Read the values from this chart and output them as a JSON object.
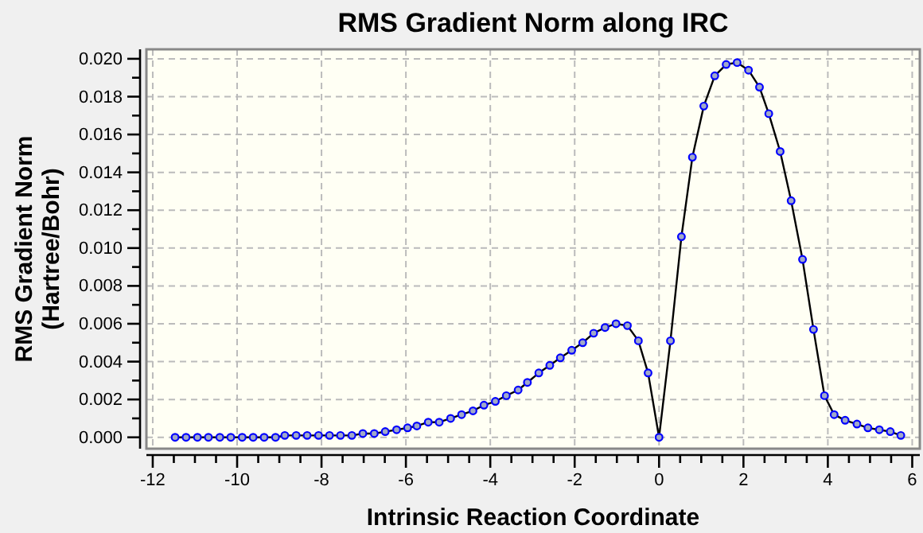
{
  "chart_data": {
    "type": "line",
    "title": "RMS Gradient Norm along IRC",
    "xlabel": "Intrinsic Reaction Coordinate",
    "ylabel": "RMS Gradient Norm\n(Hartree/Bohr)",
    "x": [
      -11.47,
      -11.21,
      -10.94,
      -10.68,
      -10.41,
      -10.15,
      -9.88,
      -9.62,
      -9.36,
      -9.09,
      -8.87,
      -8.6,
      -8.34,
      -8.07,
      -7.81,
      -7.55,
      -7.28,
      -7.02,
      -6.75,
      -6.49,
      -6.22,
      -5.96,
      -5.74,
      -5.47,
      -5.21,
      -4.94,
      -4.68,
      -4.41,
      -4.15,
      -3.88,
      -3.62,
      -3.34,
      -3.12,
      -2.85,
      -2.59,
      -2.34,
      -2.07,
      -1.81,
      -1.55,
      -1.28,
      -1.02,
      -0.75,
      -0.49,
      -0.26,
      0,
      0.27,
      0.53,
      0.79,
      1.06,
      1.32,
      1.59,
      1.85,
      2.12,
      2.38,
      2.6,
      2.87,
      3.13,
      3.4,
      3.66,
      3.92,
      4.15,
      4.41,
      4.69,
      4.95,
      5.22,
      5.48,
      5.73
    ],
    "series": [
      {
        "color": "#0000ff",
        "values": [
          0,
          0,
          0,
          0,
          0,
          0,
          0,
          0,
          0,
          0,
          0.0001,
          0.0001,
          0.0001,
          0.0001,
          0.0001,
          0.0001,
          0.0001,
          0.0002,
          0.0002,
          0.0003,
          0.0004,
          0.0005,
          0.0006,
          0.0008,
          0.0008,
          0.001,
          0.0012,
          0.0014,
          0.0017,
          0.0019,
          0.0022,
          0.0025,
          0.0029,
          0.0034,
          0.0038,
          0.0042,
          0.0046,
          0.005,
          0.0055,
          0.0058,
          0.006,
          0.0059,
          0.0051,
          0.0034,
          0,
          0.0051,
          0.0106,
          0.0148,
          0.0175,
          0.0191,
          0.0197,
          0.0198,
          0.0194,
          0.0185,
          0.0171,
          0.0151,
          0.0125,
          0.0094,
          0.0057,
          0.0022,
          0.0012,
          0.0009,
          0.0007,
          0.0005,
          0.0004,
          0.0003,
          0.0001
        ]
      }
    ],
    "xlim": [
      -12.15,
      6.18
    ],
    "ylim": [
      -0.0006,
      0.0205
    ],
    "xticks": [
      -12,
      -10,
      -8,
      -6,
      -4,
      -2,
      0,
      2,
      4,
      6
    ],
    "yticks": [
      {
        "value": 0,
        "label": "0.000"
      },
      {
        "value": 0.002,
        "label": "0.002"
      },
      {
        "value": 0.004,
        "label": "0.004"
      },
      {
        "value": 0.006,
        "label": "0.006"
      },
      {
        "value": 0.008,
        "label": "0.008"
      },
      {
        "value": 0.01,
        "label": "0.010"
      },
      {
        "value": 0.012,
        "label": "0.012"
      },
      {
        "value": 0.014,
        "label": "0.014"
      },
      {
        "value": 0.016,
        "label": "0.016"
      },
      {
        "value": 0.018,
        "label": "0.018"
      },
      {
        "value": 0.02,
        "label": "0.020"
      }
    ],
    "grid": true,
    "marker": "circle",
    "line_style": "solid"
  }
}
